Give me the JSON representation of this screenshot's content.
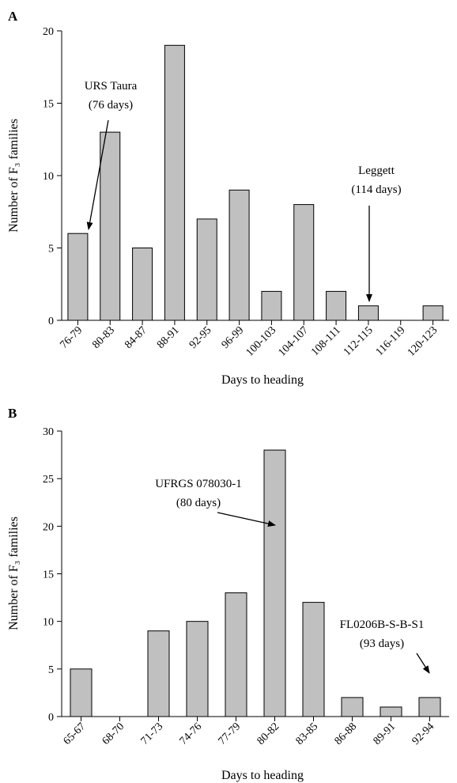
{
  "chart_data": [
    {
      "type": "bar",
      "panel_label": "A",
      "xlabel": "Days to heading",
      "ylabel": "Number of F₃ families",
      "ylim": [
        0,
        20
      ],
      "yticks": [
        "0",
        "5",
        "10",
        "15",
        "20"
      ],
      "categories": [
        "76-79",
        "80-83",
        "84-87",
        "88-91",
        "92-95",
        "96-99",
        "100-103",
        "104-107",
        "108-111",
        "112-115",
        "116-119",
        "120-123"
      ],
      "values": [
        6,
        13,
        5,
        19,
        7,
        9,
        2,
        8,
        2,
        1,
        0,
        1
      ],
      "annotations": [
        {
          "line1": "URS Taura",
          "line2": "(76 days)",
          "target_index": 0
        },
        {
          "line1": "Leggett",
          "line2": "(114 days)",
          "target_index": 9
        }
      ],
      "bar_color": "#c0c0c0"
    },
    {
      "type": "bar",
      "panel_label": "B",
      "xlabel": "Days to heading",
      "ylabel": "Number of F₃ families",
      "ylim": [
        0,
        30
      ],
      "yticks": [
        "0",
        "5",
        "10",
        "15",
        "20",
        "25",
        "30"
      ],
      "categories": [
        "65-67",
        "68-70",
        "71-73",
        "74-76",
        "77-79",
        "80-82",
        "83-85",
        "86-88",
        "89-91",
        "92-94"
      ],
      "values": [
        5,
        0,
        9,
        10,
        13,
        28,
        12,
        2,
        1,
        2
      ],
      "annotations": [
        {
          "line1": "UFRGS 078030-1",
          "line2": "(80 days)",
          "target_index": 5
        },
        {
          "line1": "FL0206B-S-B-S1",
          "line2": "(93 days)",
          "target_index": 9
        }
      ],
      "bar_color": "#c0c0c0"
    }
  ]
}
